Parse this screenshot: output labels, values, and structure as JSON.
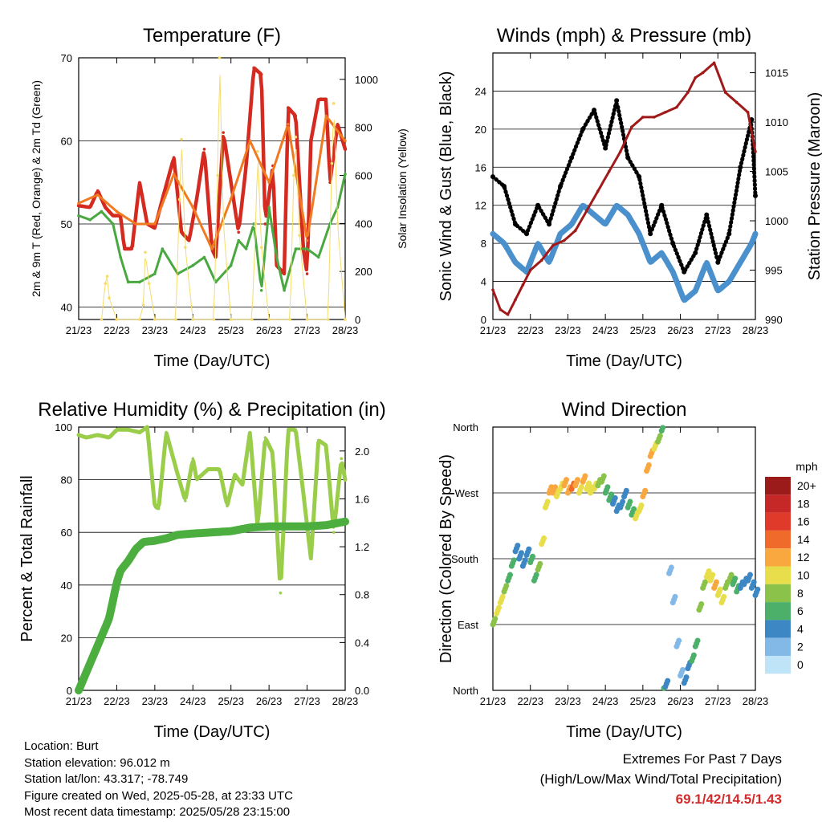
{
  "footer": {
    "location": "Location: Burt",
    "elevation": "Station elevation: 96.012 m",
    "latlon": "Station lat/lon: 43.317; -78.749",
    "created": "Figure created on Wed, 2025-05-28, at 23:33 UTC",
    "recent": "Most recent data timestamp: 2025/05/28 23:15:00",
    "extremes_title": "Extremes For Past 7 Days",
    "extremes_sub": "(High/Low/Max Wind/Total Precipitation)",
    "extremes_values": "69.1/42/14.5/1.43"
  },
  "colors": {
    "temp2m": "#d42a1f",
    "temp9m": "#f07a22",
    "dew": "#4aa840",
    "solar": "#f5dc6a",
    "wind": "#4a90cc",
    "gust": "#000000",
    "pressure": "#a01a1a",
    "rh": "#9acd4a",
    "precip": "#4cae3f"
  },
  "chart_data": [
    {
      "type": "line",
      "title": "Temperature (F)",
      "xlabel": "Time (Day/UTC)",
      "ylabel": "2m & 9m T (Red, Orange) & 2m Td (Green)",
      "y2label": "Solar Insolation (Yellow)",
      "xticks": [
        "21/23",
        "22/23",
        "23/23",
        "24/23",
        "25/23",
        "26/23",
        "27/23",
        "28/23"
      ],
      "xlim": [
        0,
        7
      ],
      "ylim": [
        38.5,
        70
      ],
      "y2lim": [
        0,
        1090
      ],
      "yticks": [
        40,
        50,
        60,
        70
      ],
      "y2ticks": [
        0,
        200,
        400,
        600,
        800,
        1000
      ],
      "series": [
        {
          "name": "2m T",
          "axis": "left",
          "x": [
            0,
            0.3,
            0.5,
            0.7,
            0.9,
            1.1,
            1.2,
            1.4,
            1.6,
            1.8,
            2.0,
            2.2,
            2.5,
            2.7,
            2.9,
            3.1,
            3.3,
            3.5,
            3.6,
            3.8,
            4.0,
            4.2,
            4.4,
            4.6,
            4.8,
            4.9,
            5.1,
            5.2,
            5.4,
            5.5,
            5.7,
            5.9,
            6.0,
            6.1,
            6.3,
            6.5,
            6.6,
            6.8,
            7.0
          ],
          "y": [
            52.2,
            52,
            54,
            52,
            51,
            51,
            47,
            47,
            55,
            50,
            49.5,
            53,
            58,
            49,
            48,
            53,
            59,
            47,
            46,
            61,
            55,
            49,
            57,
            68.8,
            68,
            50,
            57,
            45,
            44,
            64,
            63,
            47,
            44,
            60,
            65,
            65,
            55,
            62,
            59
          ]
        },
        {
          "name": "9m T",
          "axis": "left",
          "x": [
            0,
            0.5,
            1.0,
            1.5,
            2.0,
            2.5,
            3.0,
            3.5,
            4.0,
            4.5,
            5.0,
            5.5,
            6.0,
            6.5,
            7.0
          ],
          "y": [
            52.5,
            53.5,
            51.5,
            50,
            50,
            56,
            52,
            47,
            53,
            60,
            55,
            62,
            48,
            63,
            60
          ]
        },
        {
          "name": "2m Td",
          "axis": "left",
          "x": [
            0,
            0.3,
            0.6,
            0.9,
            1.1,
            1.3,
            1.6,
            2.0,
            2.2,
            2.6,
            3.0,
            3.3,
            3.6,
            4.0,
            4.2,
            4.4,
            4.6,
            4.8,
            5.0,
            5.2,
            5.4,
            5.7,
            6.0,
            6.3,
            6.6,
            6.8,
            7.0
          ],
          "y": [
            51,
            50.5,
            51.5,
            50,
            46,
            43,
            43,
            44,
            47,
            44,
            45,
            46,
            43,
            45,
            48,
            47,
            50,
            42,
            52,
            46,
            42,
            47,
            47,
            46,
            50,
            52,
            56
          ]
        },
        {
          "name": "Solar",
          "axis": "right",
          "x": [
            0.6,
            0.7,
            0.75,
            0.8,
            1.0,
            1.6,
            1.7,
            1.75,
            1.85,
            2.0,
            2.55,
            2.65,
            2.7,
            2.8,
            3.0,
            3.55,
            3.65,
            3.7,
            3.8,
            4.0,
            4.55,
            4.65,
            4.7,
            4.8,
            5.0,
            5.55,
            5.65,
            5.7,
            5.8,
            6.0,
            6.55,
            6.65,
            6.7,
            6.8,
            7.0
          ],
          "y": [
            0,
            150,
            180,
            90,
            0,
            0,
            60,
            280,
            150,
            0,
            0,
            500,
            750,
            300,
            0,
            0,
            600,
            1090,
            400,
            0,
            0,
            400,
            700,
            300,
            0,
            0,
            600,
            760,
            350,
            0,
            0,
            650,
            900,
            400,
            0
          ]
        }
      ]
    },
    {
      "type": "scatter",
      "title": "Winds (mph) & Pressure (mb)",
      "xlabel": "Time (Day/UTC)",
      "ylabel": "Sonic Wind & Gust (Blue, Black)",
      "y2label": "Station Pressure (Maroon)",
      "xticks": [
        "21/23",
        "22/23",
        "23/23",
        "24/23",
        "25/23",
        "26/23",
        "27/23",
        "28/23"
      ],
      "xlim": [
        0,
        7
      ],
      "ylim": [
        0,
        28
      ],
      "y2lim": [
        990,
        1017
      ],
      "yticks": [
        0,
        4,
        8,
        12,
        16,
        20,
        24
      ],
      "y2ticks": [
        990,
        995,
        1000,
        1005,
        1010,
        1015
      ],
      "series": [
        {
          "name": "Sonic Wind",
          "axis": "left",
          "x": [
            0,
            0.3,
            0.6,
            0.9,
            1.2,
            1.5,
            1.8,
            2.1,
            2.4,
            2.7,
            3.0,
            3.3,
            3.6,
            3.9,
            4.2,
            4.5,
            4.8,
            5.1,
            5.4,
            5.7,
            6.0,
            6.3,
            6.6,
            6.9,
            7.0
          ],
          "y": [
            9,
            8,
            6,
            5,
            8,
            6,
            9,
            10,
            12,
            11,
            10,
            12,
            11,
            9,
            6,
            7,
            5,
            2,
            3,
            6,
            3,
            4,
            6,
            8,
            9
          ]
        },
        {
          "name": "Gust",
          "axis": "left",
          "x": [
            0,
            0.3,
            0.6,
            0.9,
            1.2,
            1.5,
            1.8,
            2.1,
            2.4,
            2.7,
            3.0,
            3.3,
            3.6,
            3.9,
            4.2,
            4.5,
            4.8,
            5.1,
            5.4,
            5.7,
            6.0,
            6.3,
            6.6,
            6.9,
            7.0
          ],
          "y": [
            15,
            14,
            10,
            9,
            12,
            10,
            14,
            17,
            20,
            22,
            18,
            23,
            17,
            15,
            9,
            12,
            8,
            5,
            7,
            11,
            6,
            9,
            16,
            21,
            13
          ]
        },
        {
          "name": "Pressure",
          "axis": "right",
          "x": [
            0,
            0.2,
            0.4,
            0.6,
            0.8,
            1.0,
            1.3,
            1.6,
            1.9,
            2.2,
            2.5,
            2.8,
            3.1,
            3.4,
            3.7,
            4.0,
            4.3,
            4.6,
            4.9,
            5.2,
            5.4,
            5.6,
            5.9,
            6.2,
            6.5,
            6.8,
            7.0
          ],
          "y": [
            993,
            991,
            990.5,
            992,
            993.5,
            995,
            996,
            997.5,
            998,
            999,
            1001,
            1003,
            1005,
            1007,
            1009.5,
            1010.5,
            1010.5,
            1011,
            1011.5,
            1013,
            1014.5,
            1015,
            1016,
            1013,
            1012,
            1011,
            1007
          ]
        }
      ]
    },
    {
      "type": "line",
      "title": "Relative Humidity (%) & Precipitation (in)",
      "xlabel": "Time (Day/UTC)",
      "ylabel": "Percent & Total Rainfall",
      "xticks": [
        "21/23",
        "22/23",
        "23/23",
        "24/23",
        "25/23",
        "26/23",
        "27/23",
        "28/23"
      ],
      "xlim": [
        0,
        7
      ],
      "ylim": [
        0,
        100
      ],
      "y2lim": [
        0,
        2.2
      ],
      "yticks": [
        0,
        20,
        40,
        60,
        80,
        100
      ],
      "y2ticks": [
        "0.0",
        "0.4",
        "0.8",
        "1.2",
        "1.6",
        "2.0"
      ],
      "series": [
        {
          "name": "RH",
          "axis": "left",
          "x": [
            0,
            0.2,
            0.5,
            0.8,
            1.0,
            1.3,
            1.6,
            1.8,
            2.0,
            2.1,
            2.3,
            2.6,
            2.8,
            3.0,
            3.1,
            3.4,
            3.7,
            3.9,
            4.1,
            4.3,
            4.5,
            4.7,
            4.9,
            5.1,
            5.3,
            5.5,
            5.7,
            5.9,
            6.1,
            6.3,
            6.5,
            6.7,
            6.9,
            7.0
          ],
          "y": [
            97,
            96,
            97,
            96,
            99,
            99,
            98,
            100,
            70,
            69,
            98,
            82,
            72,
            88,
            80,
            84,
            84,
            70,
            82,
            78,
            98,
            62,
            96,
            90,
            37,
            99,
            99,
            75,
            50,
            95,
            93,
            60,
            88,
            80
          ]
        },
        {
          "name": "Precip",
          "axis": "right",
          "x": [
            0,
            0.2,
            0.4,
            0.6,
            0.8,
            1.0,
            1.1,
            1.3,
            1.5,
            1.7,
            2.0,
            2.3,
            2.6,
            3.0,
            3.5,
            4.0,
            4.5,
            5.0,
            5.5,
            6.0,
            6.5,
            7.0
          ],
          "y": [
            0,
            0.15,
            0.3,
            0.45,
            0.6,
            0.9,
            1.0,
            1.08,
            1.18,
            1.24,
            1.25,
            1.27,
            1.3,
            1.31,
            1.32,
            1.33,
            1.36,
            1.37,
            1.37,
            1.37,
            1.38,
            1.41
          ]
        }
      ]
    },
    {
      "type": "scatter",
      "title": "Wind Direction",
      "xlabel": "Time (Day/UTC)",
      "ylabel": "Direction (Colored By Speed)",
      "xticks": [
        "21/23",
        "22/23",
        "23/23",
        "24/23",
        "25/23",
        "26/23",
        "27/23",
        "28/23"
      ],
      "xlim": [
        0,
        7
      ],
      "ylim": [
        0,
        360
      ],
      "ytick_labels": [
        "North",
        "East",
        "South",
        "West",
        "North"
      ],
      "legend_title": "mph",
      "legend_labels": [
        "20+",
        "18",
        "16",
        "14",
        "12",
        "10",
        "8",
        "6",
        "4",
        "2",
        "0"
      ],
      "legend_colors": [
        "#9b1b1b",
        "#c62828",
        "#e03a2b",
        "#f06a2b",
        "#f9a840",
        "#e8de4c",
        "#8bc34a",
        "#4caf6a",
        "#3c87c4",
        "#82b9e6",
        "#bfe3f7"
      ],
      "points_x": [
        0,
        0.1,
        0.2,
        0.3,
        0.4,
        0.5,
        0.6,
        0.7,
        0.8,
        0.9,
        1.0,
        1.1,
        1.2,
        1.3,
        1.4,
        1.5,
        1.6,
        1.7,
        1.8,
        1.9,
        2.0,
        2.1,
        2.2,
        2.3,
        2.4,
        2.5,
        2.6,
        2.7,
        2.8,
        2.9,
        3.0,
        3.1,
        3.2,
        3.3,
        3.4,
        3.5,
        3.6,
        3.7,
        3.8,
        3.9,
        4.0,
        4.1,
        4.2,
        4.3,
        4.4,
        4.5,
        4.6,
        4.7,
        4.8,
        4.9,
        5.0,
        5.1,
        5.2,
        5.3,
        5.4,
        5.5,
        5.6,
        5.7,
        5.8,
        5.9,
        6.0,
        6.1,
        6.2,
        6.3,
        6.4,
        6.5,
        6.6,
        6.7,
        6.8,
        6.9,
        7.0
      ],
      "points_dir": [
        90,
        105,
        120,
        135,
        150,
        170,
        190,
        180,
        170,
        185,
        175,
        150,
        165,
        200,
        250,
        270,
        270,
        265,
        275,
        280,
        270,
        275,
        280,
        270,
        285,
        275,
        270,
        275,
        280,
        285,
        270,
        260,
        255,
        245,
        250,
        265,
        250,
        240,
        235,
        245,
        265,
        300,
        320,
        330,
        340,
        355,
        5,
        160,
        120,
        60,
        20,
        10,
        30,
        40,
        60,
        110,
        140,
        155,
        150,
        140,
        130,
        120,
        140,
        150,
        145,
        135,
        140,
        145,
        150,
        140,
        130
      ],
      "points_speed": [
        8,
        9,
        9,
        7,
        6,
        5,
        4,
        4,
        3,
        4,
        5,
        6,
        7,
        9,
        10,
        12,
        11,
        10,
        9,
        12,
        11,
        13,
        12,
        10,
        11,
        9,
        10,
        9,
        8,
        7,
        6,
        5,
        4,
        4,
        3,
        4,
        5,
        6,
        9,
        10,
        11,
        12,
        12,
        10,
        8,
        6,
        3,
        2,
        1,
        1,
        2,
        3,
        4,
        5,
        6,
        7,
        8,
        9,
        10,
        11,
        10,
        9,
        8,
        7,
        6,
        5,
        4,
        4,
        3,
        3,
        4
      ]
    }
  ]
}
